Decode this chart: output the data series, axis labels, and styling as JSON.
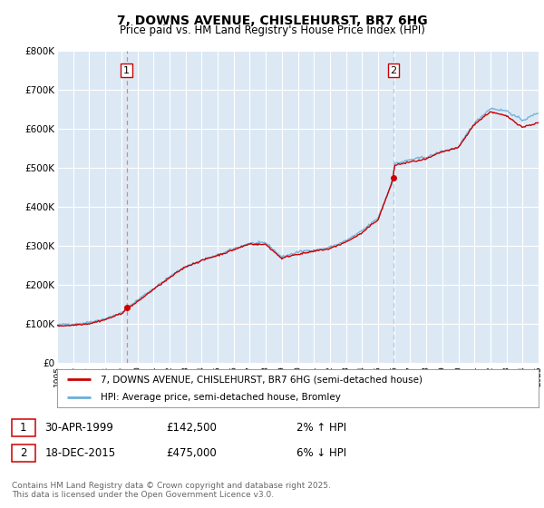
{
  "title": "7, DOWNS AVENUE, CHISLEHURST, BR7 6HG",
  "subtitle": "Price paid vs. HM Land Registry's House Price Index (HPI)",
  "ylabel_ticks": [
    "£0",
    "£100K",
    "£200K",
    "£300K",
    "£400K",
    "£500K",
    "£600K",
    "£700K",
    "£800K"
  ],
  "y_values": [
    0,
    100000,
    200000,
    300000,
    400000,
    500000,
    600000,
    700000,
    800000
  ],
  "ylim": [
    0,
    800000
  ],
  "x_start_year": 1995,
  "x_end_year": 2025,
  "purchase1_year": 1999.33,
  "purchase1_price": 142500,
  "purchase2_year": 2015.96,
  "purchase2_price": 475000,
  "red_color": "#cc0000",
  "blue_color": "#6baed6",
  "dashed1_color": "#e88080",
  "dashed2_color": "#aac4de",
  "plot_bg_color": "#dce9f5",
  "grid_color": "#ffffff",
  "legend_house": "7, DOWNS AVENUE, CHISLEHURST, BR7 6HG (semi-detached house)",
  "legend_hpi": "HPI: Average price, semi-detached house, Bromley",
  "note1_date": "30-APR-1999",
  "note1_price": "£142,500",
  "note1_change": "2% ↑ HPI",
  "note2_date": "18-DEC-2015",
  "note2_price": "£475,000",
  "note2_change": "6% ↓ HPI",
  "footer": "Contains HM Land Registry data © Crown copyright and database right 2025.\nThis data is licensed under the Open Government Licence v3.0.",
  "background_color": "#ffffff"
}
